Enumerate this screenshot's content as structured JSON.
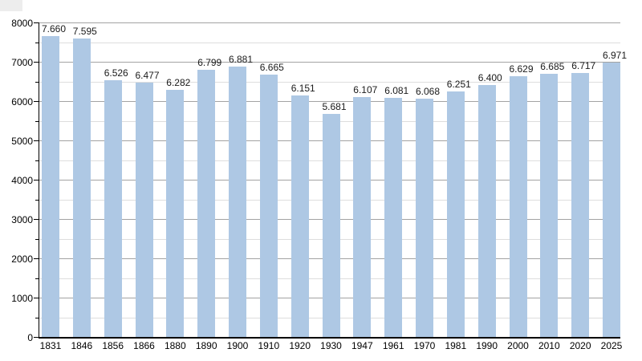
{
  "chart_data": {
    "type": "bar",
    "title": "",
    "xlabel": "",
    "ylabel": "",
    "categories": [
      "1831",
      "1846",
      "1856",
      "1866",
      "1880",
      "1890",
      "1900",
      "1910",
      "1920",
      "1930",
      "1947",
      "1961",
      "1970",
      "1981",
      "1990",
      "2000",
      "2010",
      "2020",
      "2025"
    ],
    "values": [
      7660,
      7595,
      6526,
      6477,
      6282,
      6799,
      6881,
      6665,
      6151,
      5681,
      6107,
      6081,
      6068,
      6251,
      6400,
      6629,
      6685,
      6717,
      6971
    ],
    "value_labels": [
      "7.660",
      "7.595",
      "6.526",
      "6.477",
      "6.282",
      "6.799",
      "6.881",
      "6.665",
      "6.151",
      "5.681",
      "6.107",
      "6.081",
      "6.068",
      "6.251",
      "6.400",
      "6.629",
      "6.685",
      "6.717",
      "6.971"
    ],
    "ylim": [
      0,
      8000
    ],
    "y_major_step": 1000,
    "y_minor_step": 500,
    "y_tick_labels": [
      "0",
      "1000",
      "2000",
      "3000",
      "4000",
      "5000",
      "6000",
      "7000",
      "8000"
    ],
    "grid": "horizontal-major-and-minor",
    "legend": "none",
    "colors": {
      "bar_fill": "#aec8e4",
      "grid_major": "#a3a3a3",
      "grid_minor": "#dedede",
      "axis": "#000000",
      "label_text": "#1a1a1a",
      "background": "#ffffff",
      "corner_artifact": "#ededed"
    }
  }
}
